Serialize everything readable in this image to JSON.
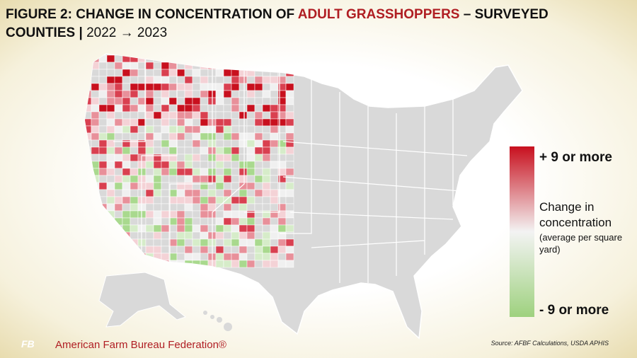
{
  "header": {
    "title_part1": "FIGURE 2: CHANGE IN CONCENTRATION OF",
    "title_highlight": "ADULT GRASSHOPPERS",
    "title_part2": "– SURVEYED",
    "title_line2_bold": "COUNTIES |",
    "title_line2_years": "2022 → 2023"
  },
  "legend": {
    "top_label": "+ 9 or more",
    "title": "Change in concentration",
    "subtitle": "(average per square yard)",
    "bottom_label": "- 9 or more"
  },
  "footer": {
    "source": "Source: AFBF Calculations, USDA APHIS",
    "logo": "FB",
    "organization": "American Farm Bureau Federation®"
  }
}
